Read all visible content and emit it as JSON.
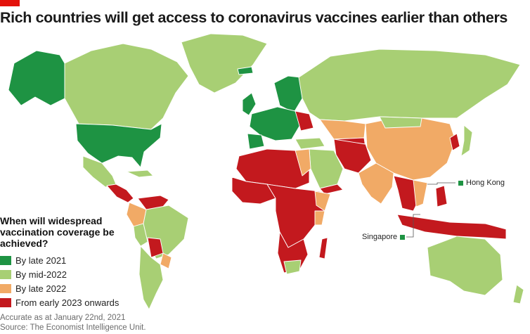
{
  "title": "Rich countries will get access to coronavirus vaccines earlier than others",
  "colors": {
    "brand": "#e3120b",
    "late_2021": "#1e9343",
    "mid_2022": "#a8cf74",
    "late_2022": "#f1aa66",
    "early_2023": "#c3191e",
    "ocean": "#ffffff",
    "border": "#ffffff"
  },
  "legend": {
    "title": "When will widespread vaccination coverage be achieved?",
    "items": [
      {
        "label": "By late 2021",
        "color": "#1e9343"
      },
      {
        "label": "By mid-2022",
        "color": "#a8cf74"
      },
      {
        "label": "By late 2022",
        "color": "#f1aa66"
      },
      {
        "label": "From early 2023 onwards",
        "color": "#c3191e"
      }
    ]
  },
  "callouts": {
    "hong_kong": "Hong Kong",
    "singapore": "Singapore"
  },
  "footnote": {
    "line1": "Accurate as at January 22nd, 2021",
    "line2": "Source: The Economist Intelligence Unit."
  }
}
